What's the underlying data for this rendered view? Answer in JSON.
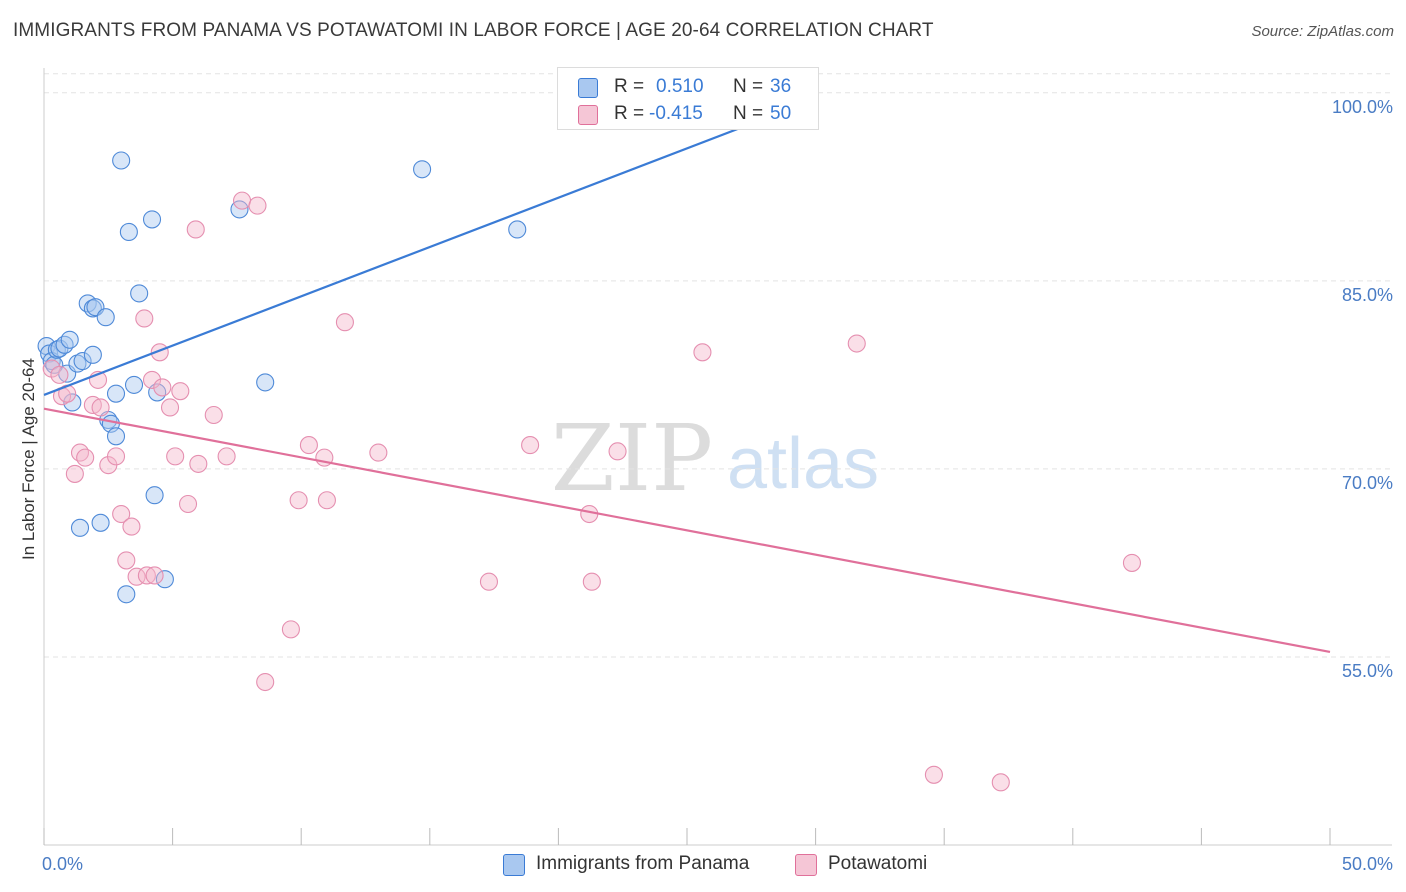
{
  "title": "IMMIGRANTS FROM PANAMA VS POTAWATOMI IN LABOR FORCE | AGE 20-64 CORRELATION CHART",
  "source": "Source: ZipAtlas.com",
  "watermark": {
    "zip": "ZIP",
    "atlas": "atlas"
  },
  "colors": {
    "blue": "#3a7bd5",
    "blue_fill": "#a9c8f0",
    "pink": "#e0709a",
    "pink_fill": "#f5b8cd",
    "axis_text": "#4a7cc4",
    "grid": "#e3e3e3"
  },
  "legend": {
    "rows": [
      {
        "r_label": "R =",
        "r_value": "0.510",
        "n_label": "N =",
        "n_value": "36",
        "color": "blue"
      },
      {
        "r_label": "R =",
        "r_value": "-0.415",
        "n_label": "N =",
        "n_value": "50",
        "color": "pink"
      }
    ]
  },
  "bottom_legend": [
    {
      "label": "Immigrants from Panama",
      "color": "blue"
    },
    {
      "label": "Potawatomi",
      "color": "pink"
    }
  ],
  "chart_data": {
    "type": "scatter",
    "title": "IMMIGRANTS FROM PANAMA VS POTAWATOMI IN LABOR FORCE | AGE 20-64 CORRELATION CHART",
    "xlabel": "",
    "ylabel": "In Labor Force | Age 20-64",
    "xlim": [
      0,
      50
    ],
    "ylim": [
      40,
      101.5
    ],
    "x_tick_labels": [
      "0.0%",
      "50.0%"
    ],
    "y_ticks": [
      55,
      70,
      85,
      100
    ],
    "y_tick_labels": [
      "55.0%",
      "70.0%",
      "85.0%",
      "100.0%"
    ],
    "grid": true,
    "legend_position": "top-center",
    "series": [
      {
        "name": "Immigrants from Panama",
        "color": "#3a7bd5",
        "r": 0.51,
        "n": 36,
        "trend": {
          "x": [
            0,
            30
          ],
          "y": [
            75.9,
            99.5
          ]
        },
        "points": [
          [
            0.1,
            79.8
          ],
          [
            0.2,
            79.2
          ],
          [
            0.3,
            78.6
          ],
          [
            0.4,
            78.3
          ],
          [
            0.5,
            79.5
          ],
          [
            0.6,
            79.6
          ],
          [
            0.8,
            79.9
          ],
          [
            0.9,
            77.6
          ],
          [
            1.0,
            80.3
          ],
          [
            1.1,
            75.3
          ],
          [
            1.3,
            78.4
          ],
          [
            1.4,
            65.3
          ],
          [
            1.5,
            78.6
          ],
          [
            1.7,
            83.2
          ],
          [
            1.9,
            82.8
          ],
          [
            1.9,
            79.1
          ],
          [
            2.0,
            82.9
          ],
          [
            2.2,
            65.7
          ],
          [
            2.4,
            82.1
          ],
          [
            2.5,
            73.9
          ],
          [
            2.6,
            73.6
          ],
          [
            2.8,
            72.6
          ],
          [
            2.8,
            76.0
          ],
          [
            3.0,
            94.6
          ],
          [
            3.2,
            60.0
          ],
          [
            3.3,
            88.9
          ],
          [
            3.5,
            76.7
          ],
          [
            3.7,
            84.0
          ],
          [
            4.2,
            89.9
          ],
          [
            4.3,
            67.9
          ],
          [
            4.4,
            76.1
          ],
          [
            4.7,
            61.2
          ],
          [
            7.6,
            90.7
          ],
          [
            8.6,
            76.9
          ],
          [
            14.7,
            93.9
          ],
          [
            18.4,
            89.1
          ]
        ]
      },
      {
        "name": "Potawatomi",
        "color": "#e0709a",
        "r": -0.415,
        "n": 50,
        "trend": {
          "x": [
            0,
            50
          ],
          "y": [
            74.8,
            55.4
          ]
        },
        "points": [
          [
            0.3,
            78.0
          ],
          [
            0.6,
            77.5
          ],
          [
            0.7,
            75.8
          ],
          [
            0.9,
            76.0
          ],
          [
            1.2,
            69.6
          ],
          [
            1.4,
            71.3
          ],
          [
            1.6,
            70.9
          ],
          [
            1.9,
            75.1
          ],
          [
            2.1,
            77.1
          ],
          [
            2.2,
            74.9
          ],
          [
            2.5,
            70.3
          ],
          [
            2.8,
            71.0
          ],
          [
            3.0,
            66.4
          ],
          [
            3.2,
            62.7
          ],
          [
            3.4,
            65.4
          ],
          [
            3.6,
            61.4
          ],
          [
            3.9,
            82.0
          ],
          [
            4.0,
            61.5
          ],
          [
            4.2,
            77.1
          ],
          [
            4.3,
            61.5
          ],
          [
            4.5,
            79.3
          ],
          [
            4.6,
            76.5
          ],
          [
            4.9,
            74.9
          ],
          [
            5.1,
            71.0
          ],
          [
            5.3,
            76.2
          ],
          [
            5.6,
            67.2
          ],
          [
            5.9,
            89.1
          ],
          [
            6.0,
            70.4
          ],
          [
            6.6,
            74.3
          ],
          [
            7.1,
            71.0
          ],
          [
            7.7,
            91.4
          ],
          [
            8.3,
            91.0
          ],
          [
            8.6,
            53.0
          ],
          [
            9.6,
            57.2
          ],
          [
            9.9,
            67.5
          ],
          [
            10.3,
            71.9
          ],
          [
            10.9,
            70.9
          ],
          [
            11.0,
            67.5
          ],
          [
            11.7,
            81.7
          ],
          [
            13.0,
            71.3
          ],
          [
            17.3,
            61.0
          ],
          [
            18.9,
            71.9
          ],
          [
            21.2,
            66.4
          ],
          [
            21.3,
            61.0
          ],
          [
            22.3,
            71.4
          ],
          [
            25.6,
            79.3
          ],
          [
            31.6,
            80.0
          ],
          [
            34.6,
            45.6
          ],
          [
            37.2,
            45.0
          ],
          [
            42.3,
            62.5
          ]
        ]
      }
    ]
  }
}
